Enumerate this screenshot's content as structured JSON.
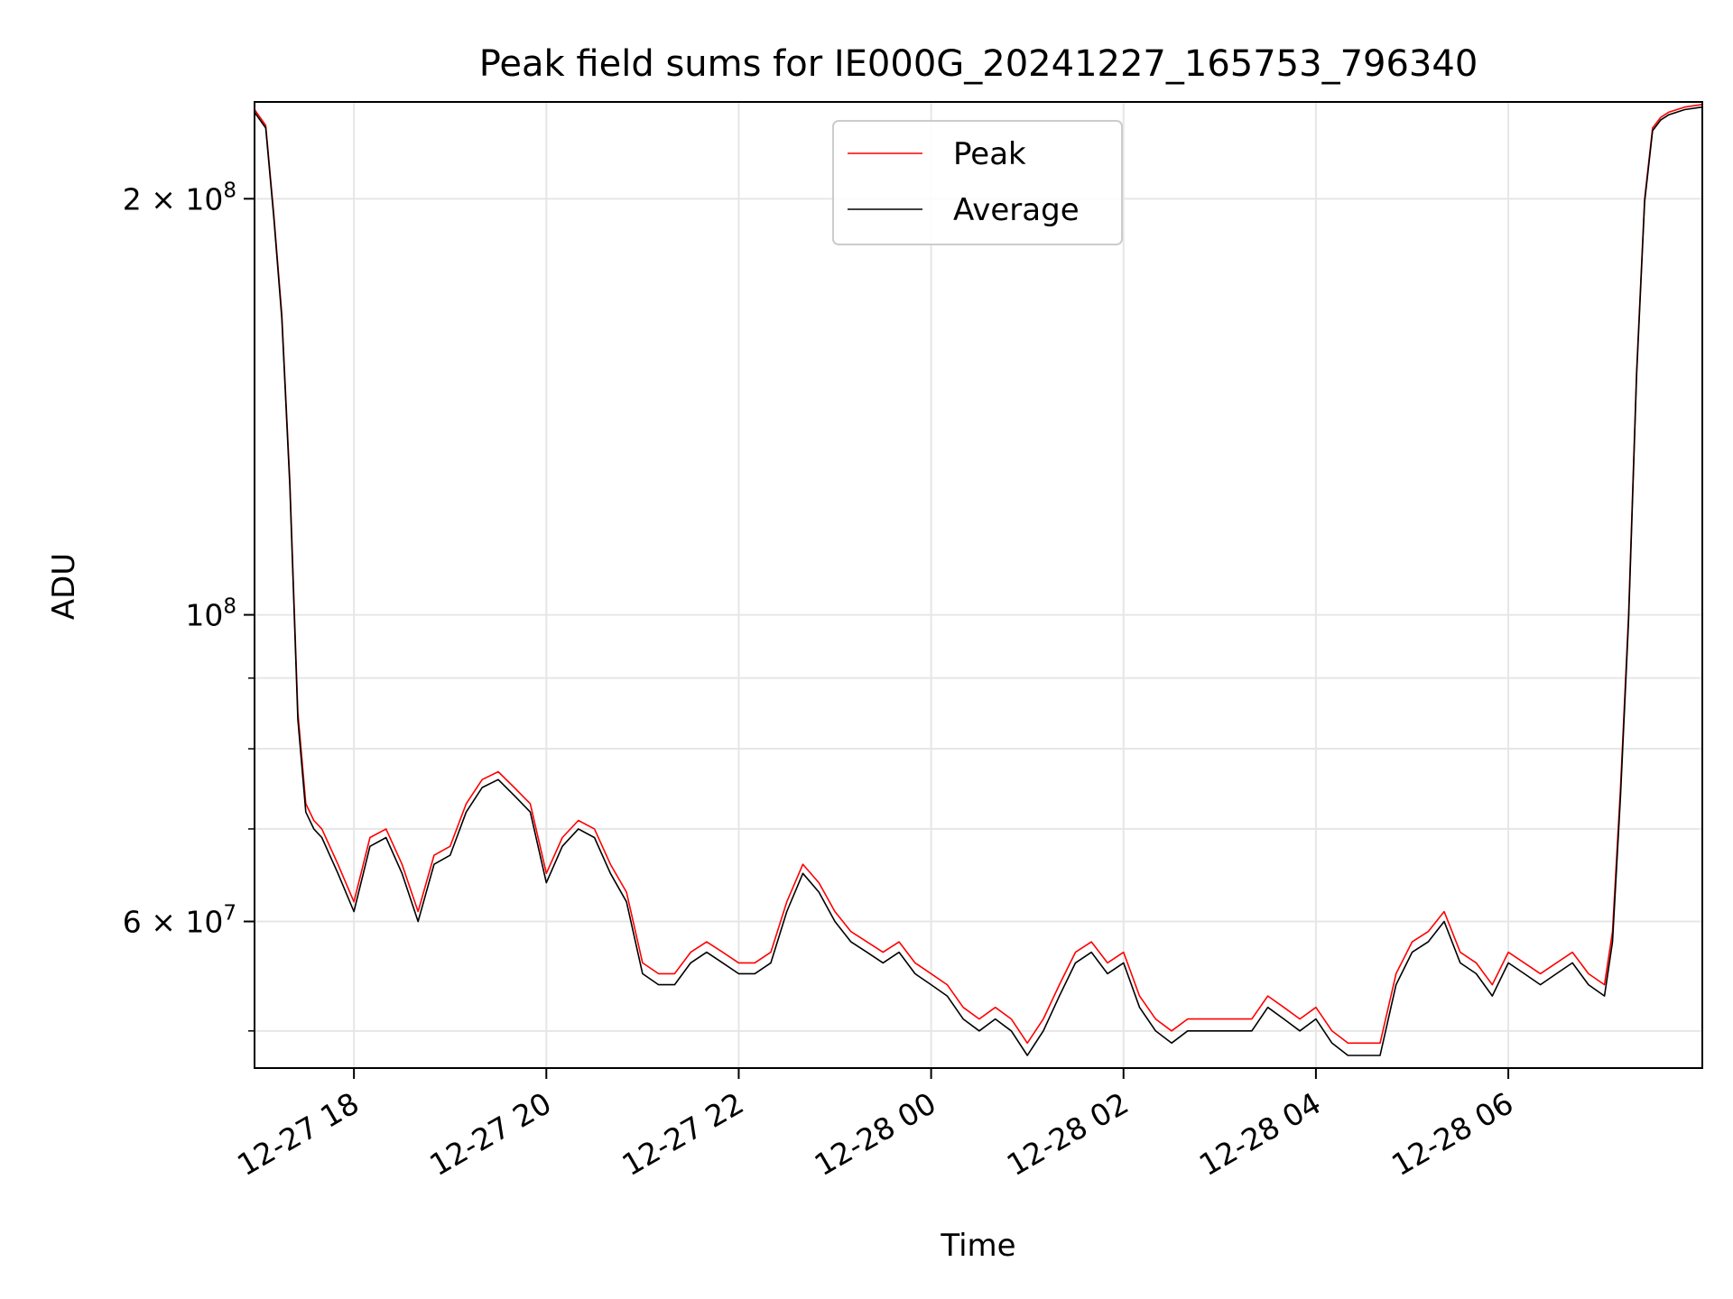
{
  "chart_data": {
    "type": "line",
    "title": "Peak field sums for IE000G_20241227_165753_796340",
    "xlabel": "Time",
    "ylabel": "ADU",
    "x_unit": "datetime",
    "xlim": [
      "2024-12-27 16:58",
      "2024-12-28 08:01"
    ],
    "ylim": [
      47000000,
      235000000
    ],
    "yscale": "log",
    "grid": true,
    "legend_position": "upper-center",
    "x_ticks": [
      {
        "value": "2024-12-27 18:00",
        "label": "12-27 18"
      },
      {
        "value": "2024-12-27 20:00",
        "label": "12-27 20"
      },
      {
        "value": "2024-12-27 22:00",
        "label": "12-27 22"
      },
      {
        "value": "2024-12-28 00:00",
        "label": "12-28 00"
      },
      {
        "value": "2024-12-28 02:00",
        "label": "12-28 02"
      },
      {
        "value": "2024-12-28 04:00",
        "label": "12-28 04"
      },
      {
        "value": "2024-12-28 06:00",
        "label": "12-28 06"
      }
    ],
    "y_ticks_major": [
      {
        "value": 60000000,
        "base": "6 × 10",
        "exp": "7"
      },
      {
        "value": 100000000,
        "base": "10",
        "exp": "8"
      },
      {
        "value": 200000000,
        "base": "2 × 10",
        "exp": "8"
      }
    ],
    "y_ticks_minor": [
      50000000,
      70000000,
      80000000,
      90000000
    ],
    "series": [
      {
        "name": "Peak",
        "color": "#ff0000",
        "x": [
          "2024-12-27 16:58",
          "2024-12-27 17:05",
          "2024-12-27 17:10",
          "2024-12-27 17:15",
          "2024-12-27 17:20",
          "2024-12-27 17:25",
          "2024-12-27 17:30",
          "2024-12-27 17:35",
          "2024-12-27 17:40",
          "2024-12-27 17:50",
          "2024-12-27 18:00",
          "2024-12-27 18:10",
          "2024-12-27 18:20",
          "2024-12-27 18:30",
          "2024-12-27 18:40",
          "2024-12-27 18:50",
          "2024-12-27 19:00",
          "2024-12-27 19:10",
          "2024-12-27 19:20",
          "2024-12-27 19:30",
          "2024-12-27 19:40",
          "2024-12-27 19:50",
          "2024-12-27 20:00",
          "2024-12-27 20:10",
          "2024-12-27 20:20",
          "2024-12-27 20:30",
          "2024-12-27 20:40",
          "2024-12-27 20:50",
          "2024-12-27 21:00",
          "2024-12-27 21:10",
          "2024-12-27 21:20",
          "2024-12-27 21:30",
          "2024-12-27 21:40",
          "2024-12-27 21:50",
          "2024-12-27 22:00",
          "2024-12-27 22:10",
          "2024-12-27 22:20",
          "2024-12-27 22:30",
          "2024-12-27 22:40",
          "2024-12-27 22:50",
          "2024-12-27 23:00",
          "2024-12-27 23:10",
          "2024-12-27 23:20",
          "2024-12-27 23:30",
          "2024-12-27 23:40",
          "2024-12-27 23:50",
          "2024-12-28 00:00",
          "2024-12-28 00:10",
          "2024-12-28 00:20",
          "2024-12-28 00:30",
          "2024-12-28 00:40",
          "2024-12-28 00:50",
          "2024-12-28 01:00",
          "2024-12-28 01:10",
          "2024-12-28 01:20",
          "2024-12-28 01:30",
          "2024-12-28 01:40",
          "2024-12-28 01:50",
          "2024-12-28 02:00",
          "2024-12-28 02:10",
          "2024-12-28 02:20",
          "2024-12-28 02:30",
          "2024-12-28 02:40",
          "2024-12-28 02:50",
          "2024-12-28 03:00",
          "2024-12-28 03:10",
          "2024-12-28 03:20",
          "2024-12-28 03:30",
          "2024-12-28 03:40",
          "2024-12-28 03:50",
          "2024-12-28 04:00",
          "2024-12-28 04:10",
          "2024-12-28 04:20",
          "2024-12-28 04:30",
          "2024-12-28 04:40",
          "2024-12-28 04:50",
          "2024-12-28 05:00",
          "2024-12-28 05:10",
          "2024-12-28 05:20",
          "2024-12-28 05:30",
          "2024-12-28 05:40",
          "2024-12-28 05:50",
          "2024-12-28 06:00",
          "2024-12-28 06:10",
          "2024-12-28 06:20",
          "2024-12-28 06:30",
          "2024-12-28 06:40",
          "2024-12-28 06:50",
          "2024-12-28 07:00",
          "2024-12-28 07:05",
          "2024-12-28 07:10",
          "2024-12-28 07:15",
          "2024-12-28 07:20",
          "2024-12-28 07:25",
          "2024-12-28 07:30",
          "2024-12-28 07:35",
          "2024-12-28 07:40",
          "2024-12-28 07:50",
          "2024-12-28 08:01"
        ],
        "y": [
          232000000,
          226000000,
          195000000,
          165000000,
          125000000,
          85000000,
          73000000,
          71000000,
          70000000,
          66000000,
          62000000,
          69000000,
          70000000,
          66000000,
          61000000,
          67000000,
          68000000,
          73000000,
          76000000,
          77000000,
          75000000,
          73000000,
          65000000,
          69000000,
          71000000,
          70000000,
          66000000,
          63000000,
          56000000,
          55000000,
          55000000,
          57000000,
          58000000,
          57000000,
          56000000,
          56000000,
          57000000,
          62000000,
          66000000,
          64000000,
          61000000,
          59000000,
          58000000,
          57000000,
          58000000,
          56000000,
          55000000,
          54000000,
          52000000,
          51000000,
          52000000,
          51000000,
          49000000,
          51000000,
          54000000,
          57000000,
          58000000,
          56000000,
          57000000,
          53000000,
          51000000,
          50000000,
          51000000,
          51000000,
          51000000,
          51000000,
          51000000,
          53000000,
          52000000,
          51000000,
          52000000,
          50000000,
          49000000,
          49000000,
          49000000,
          55000000,
          58000000,
          59000000,
          61000000,
          57000000,
          56000000,
          54000000,
          57000000,
          56000000,
          55000000,
          56000000,
          57000000,
          55000000,
          54000000,
          59000000,
          75000000,
          100000000,
          150000000,
          200000000,
          225000000,
          229000000,
          231000000,
          233000000,
          234000000
        ]
      },
      {
        "name": "Average",
        "color": "#000000",
        "x": [
          "2024-12-27 16:58",
          "2024-12-27 17:05",
          "2024-12-27 17:10",
          "2024-12-27 17:15",
          "2024-12-27 17:20",
          "2024-12-27 17:25",
          "2024-12-27 17:30",
          "2024-12-27 17:35",
          "2024-12-27 17:40",
          "2024-12-27 17:50",
          "2024-12-27 18:00",
          "2024-12-27 18:10",
          "2024-12-27 18:20",
          "2024-12-27 18:30",
          "2024-12-27 18:40",
          "2024-12-27 18:50",
          "2024-12-27 19:00",
          "2024-12-27 19:10",
          "2024-12-27 19:20",
          "2024-12-27 19:30",
          "2024-12-27 19:40",
          "2024-12-27 19:50",
          "2024-12-27 20:00",
          "2024-12-27 20:10",
          "2024-12-27 20:20",
          "2024-12-27 20:30",
          "2024-12-27 20:40",
          "2024-12-27 20:50",
          "2024-12-27 21:00",
          "2024-12-27 21:10",
          "2024-12-27 21:20",
          "2024-12-27 21:30",
          "2024-12-27 21:40",
          "2024-12-27 21:50",
          "2024-12-27 22:00",
          "2024-12-27 22:10",
          "2024-12-27 22:20",
          "2024-12-27 22:30",
          "2024-12-27 22:40",
          "2024-12-27 22:50",
          "2024-12-27 23:00",
          "2024-12-27 23:10",
          "2024-12-27 23:20",
          "2024-12-27 23:30",
          "2024-12-27 23:40",
          "2024-12-27 23:50",
          "2024-12-28 00:00",
          "2024-12-28 00:10",
          "2024-12-28 00:20",
          "2024-12-28 00:30",
          "2024-12-28 00:40",
          "2024-12-28 00:50",
          "2024-12-28 01:00",
          "2024-12-28 01:10",
          "2024-12-28 01:20",
          "2024-12-28 01:30",
          "2024-12-28 01:40",
          "2024-12-28 01:50",
          "2024-12-28 02:00",
          "2024-12-28 02:10",
          "2024-12-28 02:20",
          "2024-12-28 02:30",
          "2024-12-28 02:40",
          "2024-12-28 02:50",
          "2024-12-28 03:00",
          "2024-12-28 03:10",
          "2024-12-28 03:20",
          "2024-12-28 03:30",
          "2024-12-28 03:40",
          "2024-12-28 03:50",
          "2024-12-28 04:00",
          "2024-12-28 04:10",
          "2024-12-28 04:20",
          "2024-12-28 04:30",
          "2024-12-28 04:40",
          "2024-12-28 04:50",
          "2024-12-28 05:00",
          "2024-12-28 05:10",
          "2024-12-28 05:20",
          "2024-12-28 05:30",
          "2024-12-28 05:40",
          "2024-12-28 05:50",
          "2024-12-28 06:00",
          "2024-12-28 06:10",
          "2024-12-28 06:20",
          "2024-12-28 06:30",
          "2024-12-28 06:40",
          "2024-12-28 06:50",
          "2024-12-28 07:00",
          "2024-12-28 07:05",
          "2024-12-28 07:10",
          "2024-12-28 07:15",
          "2024-12-28 07:20",
          "2024-12-28 07:25",
          "2024-12-28 07:30",
          "2024-12-28 07:35",
          "2024-12-28 07:40",
          "2024-12-28 07:50",
          "2024-12-28 08:01"
        ],
        "y": [
          231000000,
          225000000,
          194000000,
          164000000,
          124000000,
          84000000,
          72000000,
          70000000,
          69000000,
          65000000,
          61000000,
          68000000,
          69000000,
          65000000,
          60000000,
          66000000,
          67000000,
          72000000,
          75000000,
          76000000,
          74000000,
          72000000,
          64000000,
          68000000,
          70000000,
          69000000,
          65000000,
          62000000,
          55000000,
          54000000,
          54000000,
          56000000,
          57000000,
          56000000,
          55000000,
          55000000,
          56000000,
          61000000,
          65000000,
          63000000,
          60000000,
          58000000,
          57000000,
          56000000,
          57000000,
          55000000,
          54000000,
          53000000,
          51000000,
          50000000,
          51000000,
          50000000,
          48000000,
          50000000,
          53000000,
          56000000,
          57000000,
          55000000,
          56000000,
          52000000,
          50000000,
          49000000,
          50000000,
          50000000,
          50000000,
          50000000,
          50000000,
          52000000,
          51000000,
          50000000,
          51000000,
          49000000,
          48000000,
          48000000,
          48000000,
          54000000,
          57000000,
          58000000,
          60000000,
          56000000,
          55000000,
          53000000,
          56000000,
          55000000,
          54000000,
          55000000,
          56000000,
          54000000,
          53000000,
          58000000,
          74000000,
          99000000,
          149000000,
          199000000,
          224000000,
          228000000,
          230000000,
          232000000,
          233000000
        ]
      }
    ]
  }
}
